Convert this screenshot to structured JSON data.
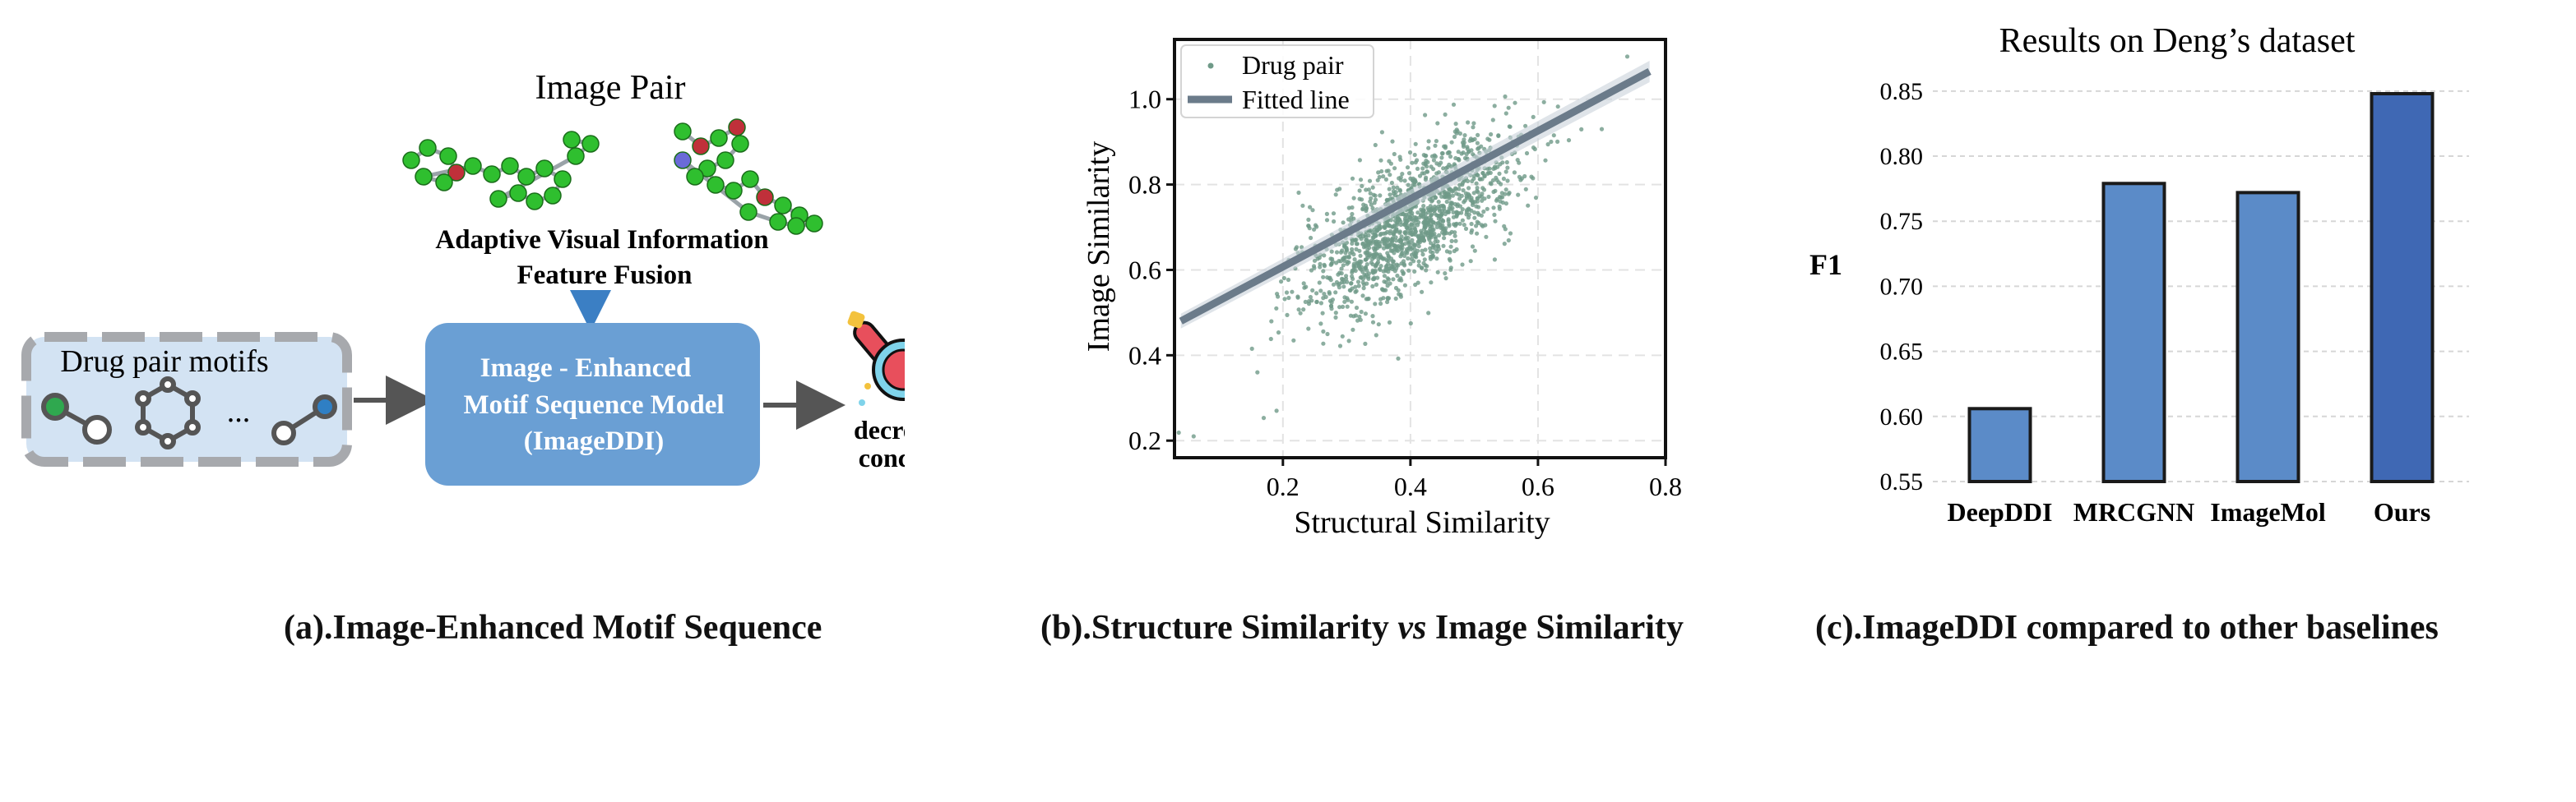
{
  "panel_a": {
    "image_pair_label": "Image Pair",
    "fusion_label_line1": "Adaptive Visual Information",
    "fusion_label_line2": "Feature Fusion",
    "motifs_label": "Drug pair motifs",
    "ellipsis": "...",
    "model_line1": "Image - Enhanced",
    "model_line2": "Motif Sequence Model",
    "model_line3": "(ImageDDI)",
    "outcome_line1": "decrease serum",
    "outcome_line2": "concentration",
    "colors": {
      "model_box": "#6a9fd4",
      "motif_box": "#d3e3f3",
      "dashed_border": "#a7a9ad",
      "arrow": "#555555",
      "fusion_arrow": "#3b7fc4",
      "down_arrow": "#e0505a",
      "atom_green": "#2fbf2f",
      "atom_red": "#c0303a"
    }
  },
  "captions": {
    "a": "(a).Image-Enhanced Motif Sequence",
    "b_part1": "(b).Structure Similarity ",
    "b_italic": "vs",
    "b_part2": " Image Similarity",
    "c": "(c).ImageDDI compared to other baselines"
  },
  "chart_data": [
    {
      "type": "scatter",
      "title": "",
      "xlabel": "Structural Similarity",
      "ylabel": "Image Similarity",
      "xlim": [
        0.03,
        0.8
      ],
      "ylim": [
        0.16,
        1.14
      ],
      "x_ticks": [
        "0.2",
        "0.4",
        "0.6",
        "0.8"
      ],
      "y_ticks": [
        "0.2",
        "0.4",
        "0.6",
        "0.8",
        "1.0"
      ],
      "grid": true,
      "legend_position": "top-left",
      "series": [
        {
          "name": "Drug pair",
          "kind": "points",
          "color": "#6f9a88",
          "distribution": {
            "count": 1500,
            "x_mean": 0.4,
            "x_sd": 0.085,
            "y_intercept": 0.43,
            "y_slope": 0.85,
            "y_sd": 0.075,
            "seed": 7
          },
          "extra_points": [
            [
              0.06,
              0.21
            ],
            [
              0.19,
              0.27
            ],
            [
              0.16,
              0.36
            ],
            [
              0.74,
              1.1
            ],
            [
              0.7,
              0.93
            ]
          ]
        },
        {
          "name": "Fitted line",
          "kind": "line",
          "color": "#6b7b8a",
          "x": [
            0.04,
            0.775
          ],
          "y": [
            0.48,
            1.065
          ]
        }
      ]
    },
    {
      "type": "bar",
      "title": "Results on Deng’s dataset",
      "xlabel": "",
      "ylabel": "F1",
      "categories": [
        "DeepDDI",
        "MRCGNN",
        "ImageMol",
        "Ours"
      ],
      "values": [
        0.606,
        0.779,
        0.772,
        0.848
      ],
      "ylim": [
        0.55,
        0.86
      ],
      "y_ticks": [
        "0.55",
        "0.60",
        "0.65",
        "0.70",
        "0.75",
        "0.80",
        "0.85"
      ],
      "grid": true,
      "bar_colors": [
        "#5b8bc8",
        "#5b8bc8",
        "#5b8bc8",
        "#3f68b4"
      ]
    }
  ]
}
